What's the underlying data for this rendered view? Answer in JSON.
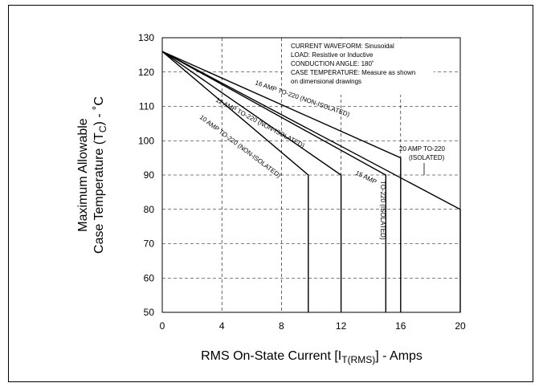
{
  "chart_data": {
    "type": "line",
    "xlabel": "RMS On-State Current [I",
    "xlabel_sub": "T(RMS)",
    "xlabel_end": "] - Amps",
    "ylabel_line1": "Maximum Allowable",
    "ylabel_line2": "Case Temperature (T",
    "ylabel_sub": "C",
    "ylabel_end": ") - ˚C",
    "xlim": [
      0,
      20
    ],
    "ylim": [
      50,
      130
    ],
    "xticks": [
      "0",
      "4",
      "8",
      "12",
      "16",
      "20"
    ],
    "yticks": [
      "50",
      "60",
      "70",
      "80",
      "90",
      "100",
      "110",
      "120",
      "130"
    ],
    "grid": true,
    "notes": [
      "CURRENT WAVEFORM: Sinusoidal",
      "LOAD: Resistive or Inductive",
      "CONDUCTION ANGLE: 180˚",
      "CASE TEMPERATURE: Measure as shown",
      "on dimensional drawings"
    ],
    "series": [
      {
        "name": "10 AMP TO-220 (NON-ISOLATED)",
        "x": [
          0,
          9.8,
          9.8
        ],
        "y": [
          126,
          90,
          50
        ]
      },
      {
        "name": "12 AMP TO-220 (NON-ISOLATED)",
        "x": [
          0,
          12,
          12
        ],
        "y": [
          126,
          90,
          50
        ]
      },
      {
        "name": "15 AMP TO-220 (ISOLATED)",
        "x": [
          0,
          15,
          15
        ],
        "y": [
          126,
          90,
          50
        ]
      },
      {
        "name": "16 AMP TO-220 (NON-ISOLATED)",
        "x": [
          0,
          16,
          16
        ],
        "y": [
          126,
          95,
          50
        ]
      },
      {
        "name": "20 AMP TO-220 (ISOLATED)",
        "x": [
          0,
          20,
          20
        ],
        "y": [
          126,
          80,
          50
        ]
      }
    ],
    "labels": {
      "s10": "10 AMP TO-220 (NON-ISOLATED)",
      "s12": "12 AMP TO-220 (NON-ISOLATED)",
      "s16": "16 AMP TO-220 (NON-ISOLATED)",
      "s15a": "15 AMP",
      "s15b": "TO-220 (ISOLATED)",
      "s20a": "20 AMP TO-220",
      "s20b": "(ISOLATED)"
    }
  }
}
